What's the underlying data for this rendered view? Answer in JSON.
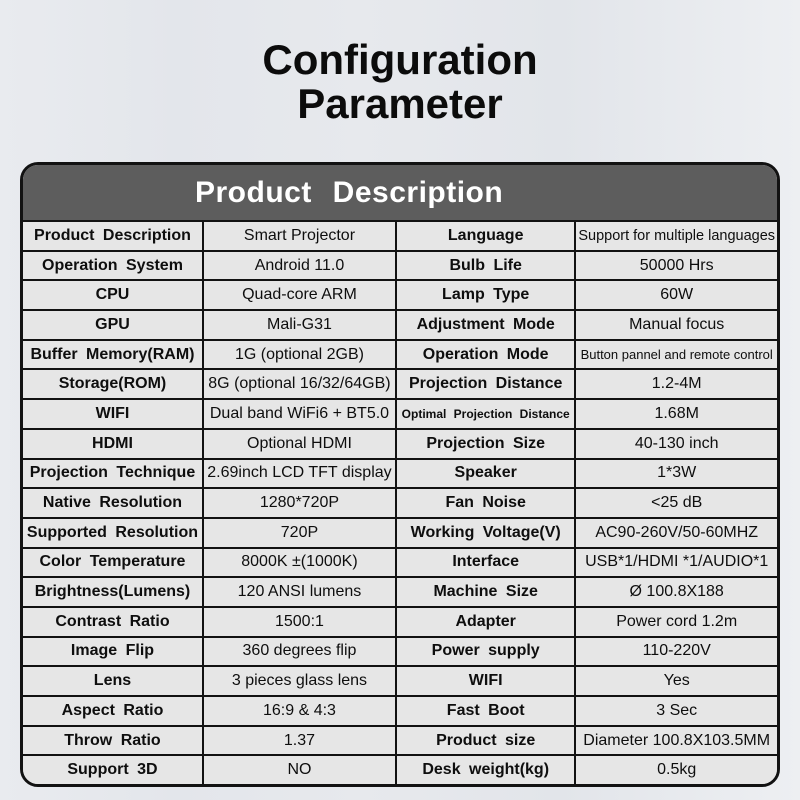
{
  "page_title": {
    "line1": "Configuration",
    "line2": "Parameter"
  },
  "table": {
    "header": "Product Description",
    "rows": [
      {
        "label1": "Product Description",
        "value1": "Smart Projector",
        "label2": "Language",
        "value2": "Support for multiple languages"
      },
      {
        "label1": "Operation System",
        "value1": "Android 11.0",
        "label2": "Bulb Life",
        "value2": "50000 Hrs"
      },
      {
        "label1": "CPU",
        "value1": "Quad-core ARM",
        "label2": "Lamp Type",
        "value2": "60W"
      },
      {
        "label1": "GPU",
        "value1": "Mali-G31",
        "label2": "Adjustment Mode",
        "value2": "Manual focus"
      },
      {
        "label1": "Buffer Memory(RAM)",
        "value1": "1G (optional 2GB)",
        "label2": "Operation Mode",
        "value2": "Button pannel and remote control"
      },
      {
        "label1": "Storage(ROM)",
        "value1": "8G (optional 16/32/64GB)",
        "label2": "Projection Distance",
        "value2": "1.2-4M"
      },
      {
        "label1": "WIFI",
        "value1": "Dual band WiFi6 + BT5.0",
        "label2": "Optimal Projection Distance",
        "value2": "1.68M"
      },
      {
        "label1": "HDMI",
        "value1": "Optional HDMI",
        "label2": "Projection Size",
        "value2": "40-130 inch"
      },
      {
        "label1": "Projection Technique",
        "value1": "2.69inch LCD TFT display",
        "label2": "Speaker",
        "value2": "1*3W"
      },
      {
        "label1": "Native Resolution",
        "value1": "1280*720P",
        "label2": "Fan Noise",
        "value2": "<25 dB"
      },
      {
        "label1": "Supported Resolution",
        "value1": "720P",
        "label2": "Working Voltage(V)",
        "value2": "AC90-260V/50-60MHZ"
      },
      {
        "label1": "Color Temperature",
        "value1": "8000K ±(1000K)",
        "label2": "Interface",
        "value2": "USB*1/HDMI *1/AUDIO*1"
      },
      {
        "label1": "Brightness(Lumens)",
        "value1": "120 ANSI lumens",
        "label2": "Machine Size",
        "value2": "Ø 100.8X188"
      },
      {
        "label1": "Contrast Ratio",
        "value1": "1500:1",
        "label2": "Adapter",
        "value2": "Power cord 1.2m"
      },
      {
        "label1": "Image Flip",
        "value1": "360 degrees flip",
        "label2": "Power supply",
        "value2": "110-220V"
      },
      {
        "label1": "Lens",
        "value1": "3 pieces glass lens",
        "label2": "WIFI",
        "value2": "Yes"
      },
      {
        "label1": "Aspect Ratio",
        "value1": "16:9 & 4:3",
        "label2": "Fast Boot",
        "value2": "3 Sec"
      },
      {
        "label1": "Throw Ratio",
        "value1": "1.37",
        "label2": "Product size",
        "value2": "Diameter 100.8X103.5MM"
      },
      {
        "label1": "Support 3D",
        "value1": "NO",
        "label2": "Desk weight(kg)",
        "value2": "0.5kg"
      }
    ]
  },
  "colors": {
    "header_band": "#5d5d5d",
    "cell_background": "#e6e6e6",
    "border": "#121212",
    "title_text": "#0c0c0c",
    "header_text": "#ffffff"
  }
}
